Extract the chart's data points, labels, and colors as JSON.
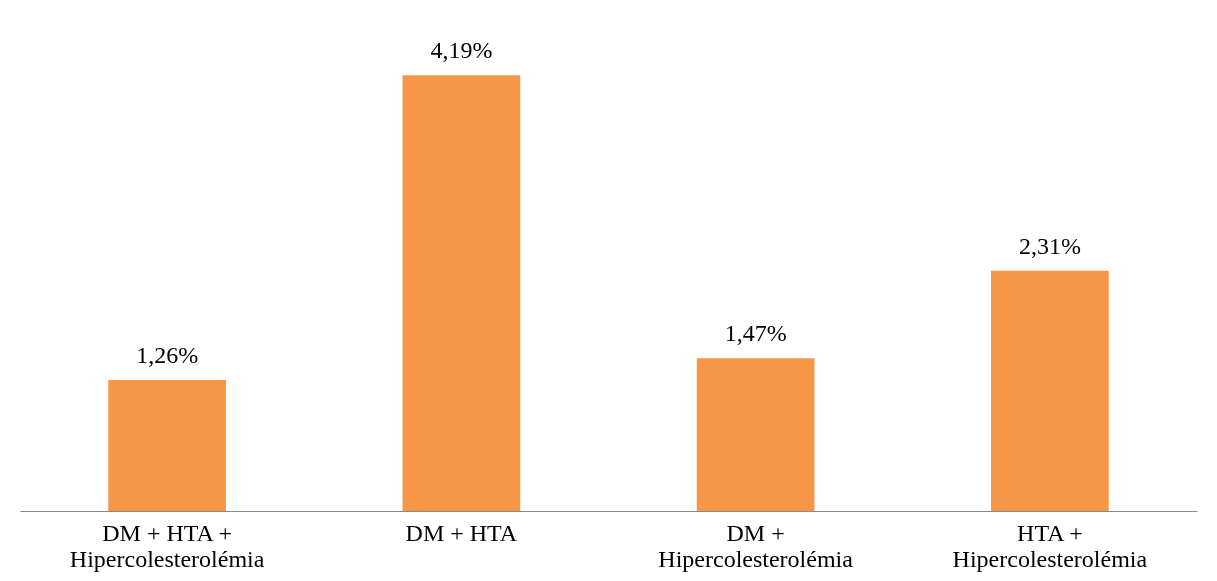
{
  "chart_data": {
    "type": "bar",
    "categories": [
      "DM + HTA +\nHipercolesterolémia",
      "DM + HTA",
      "DM +\nHipercolesterolémia",
      "HTA +\nHipercolesterolémia"
    ],
    "values": [
      1.26,
      4.19,
      1.47,
      2.31
    ],
    "value_labels": [
      "1,26%",
      "4,19%",
      "1,47%",
      "2,31%"
    ],
    "color": "#f79646"
  }
}
